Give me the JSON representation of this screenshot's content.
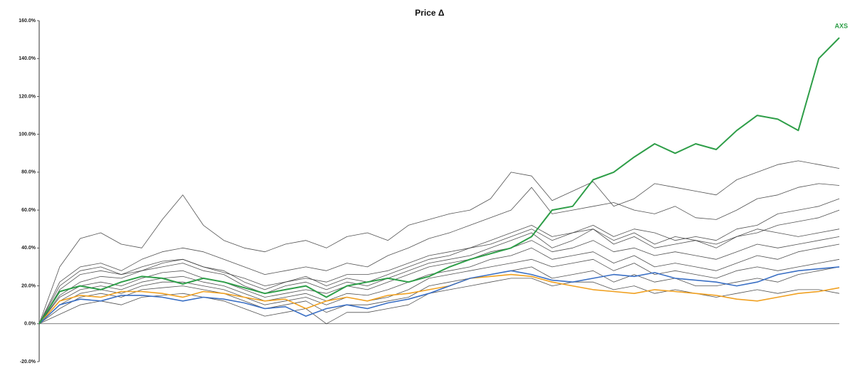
{
  "chart_data": {
    "type": "line",
    "title": "Price Δ",
    "ylim": [
      -20,
      160
    ],
    "yticks": [
      {
        "value": -20,
        "label": "-20.0%"
      },
      {
        "value": 0,
        "label": "0.0%"
      },
      {
        "value": 20,
        "label": "20.0%"
      },
      {
        "value": 40,
        "label": "40.0%"
      },
      {
        "value": 60,
        "label": "60.0%"
      },
      {
        "value": 80,
        "label": "80.0%"
      },
      {
        "value": 100,
        "label": "100.0%"
      },
      {
        "value": 120,
        "label": "120.0%"
      },
      {
        "value": 140,
        "label": "140.0%"
      },
      {
        "value": 160,
        "label": "160.0%"
      }
    ],
    "series": [
      {
        "color": "#333333",
        "values": [
          0,
          30,
          45,
          48,
          42,
          40,
          55,
          68,
          52,
          44,
          40,
          38,
          42,
          44,
          40,
          46,
          48,
          44,
          52,
          55,
          58,
          60,
          66,
          80,
          78,
          65,
          70,
          75,
          62,
          66,
          74,
          72,
          70,
          68,
          76,
          80,
          84,
          86,
          84,
          82
        ]
      },
      {
        "color": "#333333",
        "values": [
          0,
          22,
          30,
          32,
          28,
          34,
          38,
          40,
          38,
          34,
          30,
          26,
          28,
          30,
          28,
          32,
          30,
          36,
          40,
          45,
          48,
          52,
          56,
          60,
          72,
          58,
          60,
          62,
          64,
          60,
          58,
          62,
          56,
          55,
          60,
          66,
          68,
          72,
          74,
          73
        ]
      },
      {
        "color": "#333333",
        "values": [
          0,
          18,
          26,
          28,
          26,
          30,
          33,
          34,
          30,
          28,
          22,
          18,
          22,
          25,
          20,
          24,
          22,
          26,
          30,
          34,
          36,
          40,
          42,
          46,
          50,
          44,
          48,
          52,
          46,
          50,
          48,
          44,
          46,
          44,
          50,
          52,
          58,
          60,
          62,
          66
        ]
      },
      {
        "color": "#333333",
        "values": [
          0,
          15,
          22,
          25,
          24,
          28,
          30,
          32,
          28,
          26,
          20,
          16,
          20,
          22,
          18,
          22,
          20,
          24,
          28,
          32,
          34,
          36,
          40,
          44,
          48,
          40,
          44,
          50,
          42,
          46,
          40,
          42,
          44,
          40,
          46,
          48,
          52,
          54,
          56,
          60
        ]
      },
      {
        "color": "#333333",
        "values": [
          0,
          20,
          28,
          30,
          26,
          28,
          32,
          34,
          30,
          27,
          24,
          20,
          22,
          24,
          22,
          26,
          26,
          28,
          32,
          36,
          38,
          40,
          44,
          48,
          52,
          46,
          48,
          50,
          44,
          48,
          42,
          46,
          44,
          42,
          46,
          50,
          48,
          46,
          48,
          50
        ]
      },
      {
        "color": "#333333",
        "values": [
          0,
          14,
          20,
          22,
          20,
          24,
          27,
          28,
          24,
          22,
          18,
          14,
          16,
          18,
          16,
          20,
          18,
          22,
          26,
          30,
          32,
          34,
          38,
          40,
          44,
          38,
          40,
          44,
          38,
          40,
          36,
          38,
          36,
          34,
          38,
          42,
          40,
          42,
          44,
          46
        ]
      },
      {
        "color": "#333333",
        "values": [
          0,
          12,
          18,
          20,
          18,
          22,
          24,
          25,
          22,
          20,
          16,
          12,
          14,
          16,
          12,
          16,
          15,
          18,
          22,
          26,
          28,
          30,
          34,
          36,
          40,
          34,
          36,
          38,
          32,
          36,
          30,
          32,
          30,
          28,
          32,
          36,
          34,
          38,
          40,
          42
        ]
      },
      {
        "color": "#333333",
        "values": [
          0,
          10,
          16,
          18,
          16,
          20,
          22,
          22,
          20,
          18,
          14,
          10,
          12,
          14,
          10,
          14,
          12,
          14,
          18,
          24,
          26,
          28,
          30,
          32,
          34,
          30,
          32,
          34,
          28,
          32,
          26,
          28,
          26,
          24,
          28,
          30,
          28,
          30,
          32,
          34
        ]
      },
      {
        "color": "#333333",
        "values": [
          0,
          8,
          14,
          16,
          14,
          18,
          19,
          20,
          18,
          16,
          12,
          8,
          10,
          12,
          6,
          10,
          10,
          12,
          14,
          20,
          22,
          24,
          26,
          28,
          30,
          24,
          26,
          28,
          22,
          26,
          22,
          24,
          20,
          20,
          22,
          24,
          22,
          26,
          28,
          30
        ]
      },
      {
        "color": "#333333",
        "values": [
          0,
          5,
          10,
          12,
          10,
          14,
          15,
          16,
          14,
          12,
          8,
          4,
          6,
          8,
          0,
          6,
          6,
          8,
          10,
          16,
          18,
          20,
          22,
          24,
          24,
          20,
          22,
          22,
          18,
          20,
          16,
          18,
          16,
          14,
          16,
          18,
          16,
          18,
          18,
          16
        ]
      },
      {
        "color": "#f0a020",
        "values": [
          0,
          12,
          15,
          14,
          17,
          17,
          16,
          14,
          17,
          16,
          14,
          12,
          13,
          8,
          12,
          14,
          12,
          15,
          16,
          18,
          20,
          24,
          25,
          26,
          25,
          22,
          20,
          18,
          17,
          16,
          18,
          17,
          16,
          15,
          13,
          12,
          14,
          16,
          17,
          19
        ]
      },
      {
        "color": "#3a6fc4",
        "values": [
          0,
          10,
          13,
          12,
          15,
          15,
          14,
          12,
          14,
          13,
          11,
          8,
          9,
          4,
          8,
          10,
          8,
          11,
          13,
          16,
          20,
          24,
          26,
          28,
          26,
          23,
          22,
          24,
          26,
          25,
          27,
          24,
          23,
          22,
          20,
          22,
          26,
          28,
          29,
          30
        ]
      },
      {
        "name": "AXS",
        "color": "#2e9e48",
        "values": [
          0,
          17,
          20,
          18,
          22,
          25,
          24,
          21,
          24,
          22,
          19,
          16,
          18,
          20,
          14,
          20,
          22,
          24,
          22,
          25,
          30,
          34,
          37,
          40,
          46,
          60,
          62,
          76,
          80,
          88,
          95,
          90,
          95,
          92,
          102,
          110,
          108,
          102,
          140,
          151
        ]
      }
    ]
  }
}
